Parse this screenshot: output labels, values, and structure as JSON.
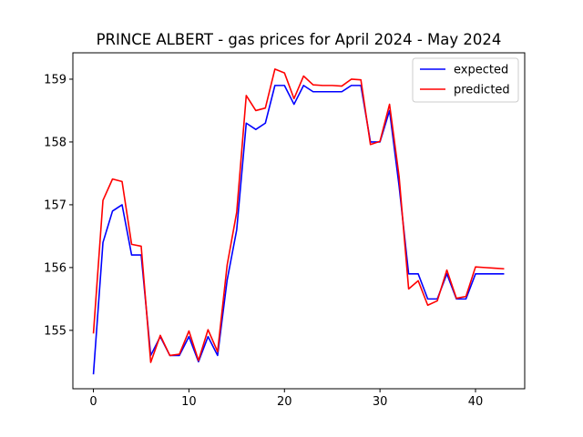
{
  "chart_data": {
    "type": "line",
    "title": "PRINCE ALBERT - gas prices for April 2024 - May 2024",
    "xlabel": "",
    "ylabel": "",
    "xlim": [
      -2.15,
      45.15
    ],
    "ylim": [
      154.07,
      159.42
    ],
    "xticks": [
      0,
      10,
      20,
      30,
      40
    ],
    "yticks": [
      155,
      156,
      157,
      158,
      159
    ],
    "grid": false,
    "legend": "top-right",
    "x": [
      0,
      1,
      2,
      3,
      4,
      5,
      6,
      7,
      8,
      9,
      10,
      11,
      12,
      13,
      14,
      15,
      16,
      17,
      18,
      19,
      20,
      21,
      22,
      23,
      24,
      25,
      26,
      27,
      28,
      29,
      30,
      31,
      32,
      33,
      34,
      35,
      36,
      37,
      38,
      39,
      40,
      41,
      42,
      43
    ],
    "series": [
      {
        "name": "expected",
        "color": "#0000ff",
        "values": [
          154.3,
          156.4,
          156.9,
          157.0,
          156.2,
          156.2,
          154.6,
          154.9,
          154.6,
          154.6,
          154.9,
          154.5,
          154.9,
          154.6,
          155.8,
          156.6,
          158.3,
          158.2,
          158.3,
          158.9,
          158.9,
          158.6,
          158.9,
          158.8,
          158.8,
          158.8,
          158.8,
          158.9,
          158.9,
          158.0,
          158.0,
          158.5,
          157.3,
          155.9,
          155.9,
          155.5,
          155.5,
          155.9,
          155.5,
          155.5,
          155.9,
          155.9,
          155.9,
          155.9
        ]
      },
      {
        "name": "predicted",
        "color": "#ff0000",
        "values": [
          154.95,
          157.07,
          157.41,
          157.37,
          156.37,
          156.34,
          154.49,
          154.92,
          154.6,
          154.62,
          154.99,
          154.52,
          155.01,
          154.66,
          156.04,
          156.88,
          158.74,
          158.5,
          158.54,
          159.16,
          159.1,
          158.69,
          159.05,
          158.91,
          158.9,
          158.9,
          158.89,
          159.0,
          158.99,
          157.96,
          158.01,
          158.6,
          157.45,
          155.66,
          155.79,
          155.4,
          155.47,
          155.96,
          155.51,
          155.54,
          156.01,
          156.0,
          155.99,
          155.98
        ]
      }
    ]
  }
}
